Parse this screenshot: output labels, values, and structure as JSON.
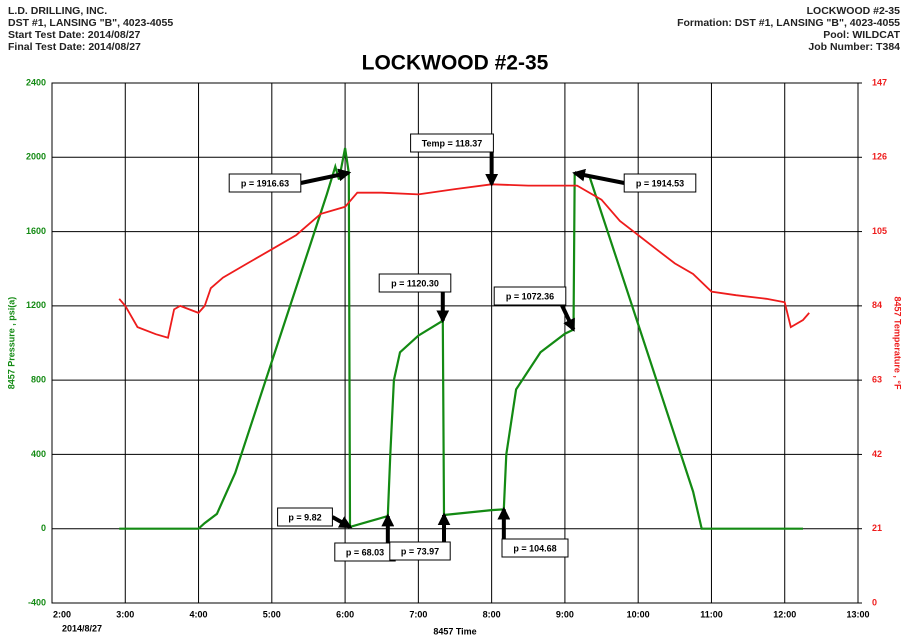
{
  "chart_data": {
    "type": "line",
    "title": "LOCKWOOD #2-35",
    "header_left": [
      "L.D. DRILLING, INC.",
      "DST #1, LANSING \"B\", 4023-4055",
      "Start Test Date: 2014/08/27",
      "Final Test Date: 2014/08/27"
    ],
    "header_right": [
      "LOCKWOOD #2-35",
      "Formation: DST #1, LANSING \"B\", 4023-4055",
      "Pool: WILDCAT",
      "Job Number: T384"
    ],
    "x_label": "8457 Time",
    "y_label": "8457 Pressure , psi(a)",
    "y2_label": "8457 Temperature , °F",
    "x_date_label": "2014/8/27",
    "xlim": [
      "2:00",
      "13:00"
    ],
    "xticks": [
      "2:00",
      "3:00",
      "4:00",
      "5:00",
      "6:00",
      "7:00",
      "8:00",
      "9:00",
      "10:00",
      "11:00",
      "12:00",
      "13:00"
    ],
    "ylim": [
      -400,
      2400
    ],
    "yticks": [
      -400,
      0,
      400,
      800,
      1200,
      1600,
      2000,
      2400
    ],
    "y2lim": [
      0,
      147
    ],
    "y2ticks": [
      0,
      21,
      42,
      63,
      84,
      105,
      126,
      147
    ],
    "grid": true,
    "series": [
      {
        "name": "8457 Pressure",
        "color": "#138a13",
        "x": [
          "2:55",
          "3:40",
          "4:00",
          "4:05",
          "4:15",
          "4:30",
          "4:45",
          "5:00",
          "5:15",
          "5:30",
          "5:45",
          "5:52",
          "5:55",
          "6:00",
          "6:03",
          "6:04",
          "6:20",
          "6:35",
          "6:37",
          "6:40",
          "6:45",
          "7:00",
          "7:15",
          "7:20",
          "7:21",
          "7:30",
          "8:00",
          "8:10",
          "8:12",
          "8:20",
          "8:40",
          "9:00",
          "9:07",
          "9:08",
          "9:20",
          "9:30",
          "9:45",
          "10:00",
          "10:15",
          "10:30",
          "10:45",
          "10:52",
          "12:15"
        ],
        "values": [
          0,
          0,
          0,
          30,
          80,
          300,
          600,
          900,
          1200,
          1500,
          1800,
          1950,
          1880,
          2050,
          1916.63,
          9.82,
          40,
          68.03,
          400,
          800,
          950,
          1040,
          1100,
          1120.3,
          73.97,
          80,
          100,
          104.68,
          400,
          750,
          950,
          1050,
          1072.36,
          1914.53,
          1900,
          1700,
          1400,
          1100,
          800,
          500,
          200,
          0,
          0
        ]
      },
      {
        "name": "8457 Temperature",
        "color": "#ee1c1c",
        "axis": "y2",
        "x": [
          "2:55",
          "3:00",
          "3:10",
          "3:25",
          "3:35",
          "3:40",
          "3:45",
          "4:00",
          "4:05",
          "4:10",
          "4:20",
          "4:40",
          "5:00",
          "5:20",
          "5:40",
          "6:00",
          "6:10",
          "6:30",
          "7:00",
          "7:30",
          "8:00",
          "8:30",
          "9:00",
          "9:10",
          "9:30",
          "9:45",
          "10:00",
          "10:15",
          "10:30",
          "10:45",
          "11:00",
          "11:20",
          "11:45",
          "12:00",
          "12:05",
          "12:15",
          "12:20"
        ],
        "values": [
          86,
          84,
          78,
          76,
          75,
          83,
          84,
          82,
          84,
          89,
          92,
          96,
          100,
          104,
          110,
          112,
          116,
          116,
          115.5,
          117,
          118.37,
          118,
          118,
          118,
          114,
          108,
          104,
          100,
          96,
          93,
          88,
          87,
          86,
          85,
          78,
          80,
          82
        ]
      }
    ],
    "annotations": [
      {
        "text": "p = 1916.63",
        "series": 0,
        "point": 14
      },
      {
        "text": "Temp = 118.37",
        "series": 1,
        "point": 20
      },
      {
        "text": "p = 1120.30",
        "series": 0,
        "point": 23
      },
      {
        "text": "p = 1072.36",
        "series": 0,
        "point": 32
      },
      {
        "text": "p = 1914.53",
        "series": 0,
        "point": 33
      },
      {
        "text": "p = 9.82",
        "series": 0,
        "point": 15
      },
      {
        "text": "p = 68.03",
        "series": 0,
        "point": 17
      },
      {
        "text": "p = 73.97",
        "series": 0,
        "point": 24
      },
      {
        "text": "p = 104.68",
        "series": 0,
        "point": 27
      }
    ]
  }
}
